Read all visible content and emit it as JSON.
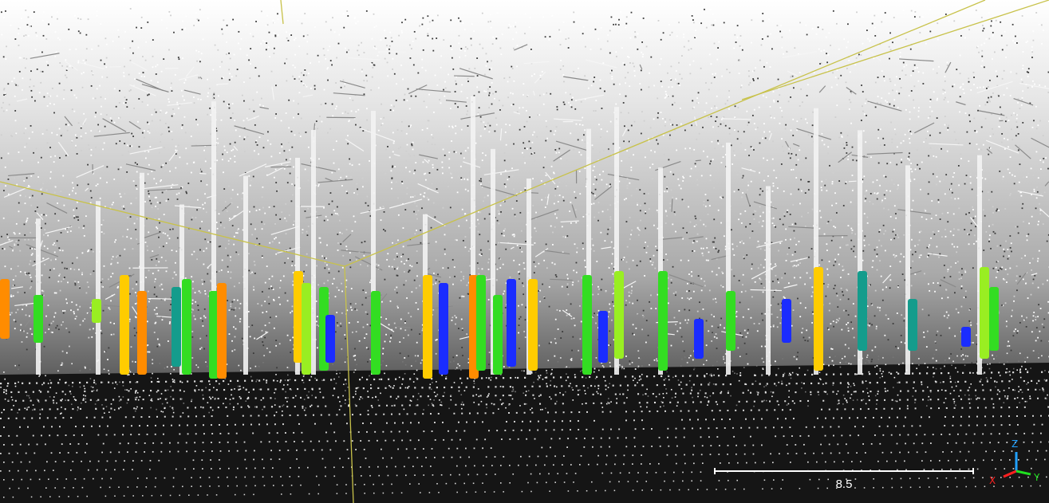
{
  "viewer": {
    "title": "",
    "background_colors": {
      "top": "#ffffff",
      "bottom": "#1a1a1a"
    },
    "bounding_box_color": "#c8c24a"
  },
  "scale_bar": {
    "label": "8.5"
  },
  "axes": {
    "x": {
      "label": "X",
      "color": "#ff2020"
    },
    "y": {
      "label": "Y",
      "color": "#20e020"
    },
    "z": {
      "label": "Z",
      "color": "#20a0ff"
    }
  },
  "segmented_stems": {
    "palette": [
      "#ff8c00",
      "#ffcc00",
      "#33dd22",
      "#99ee22",
      "#1a2cff",
      "#149c8c"
    ],
    "count": 34
  }
}
